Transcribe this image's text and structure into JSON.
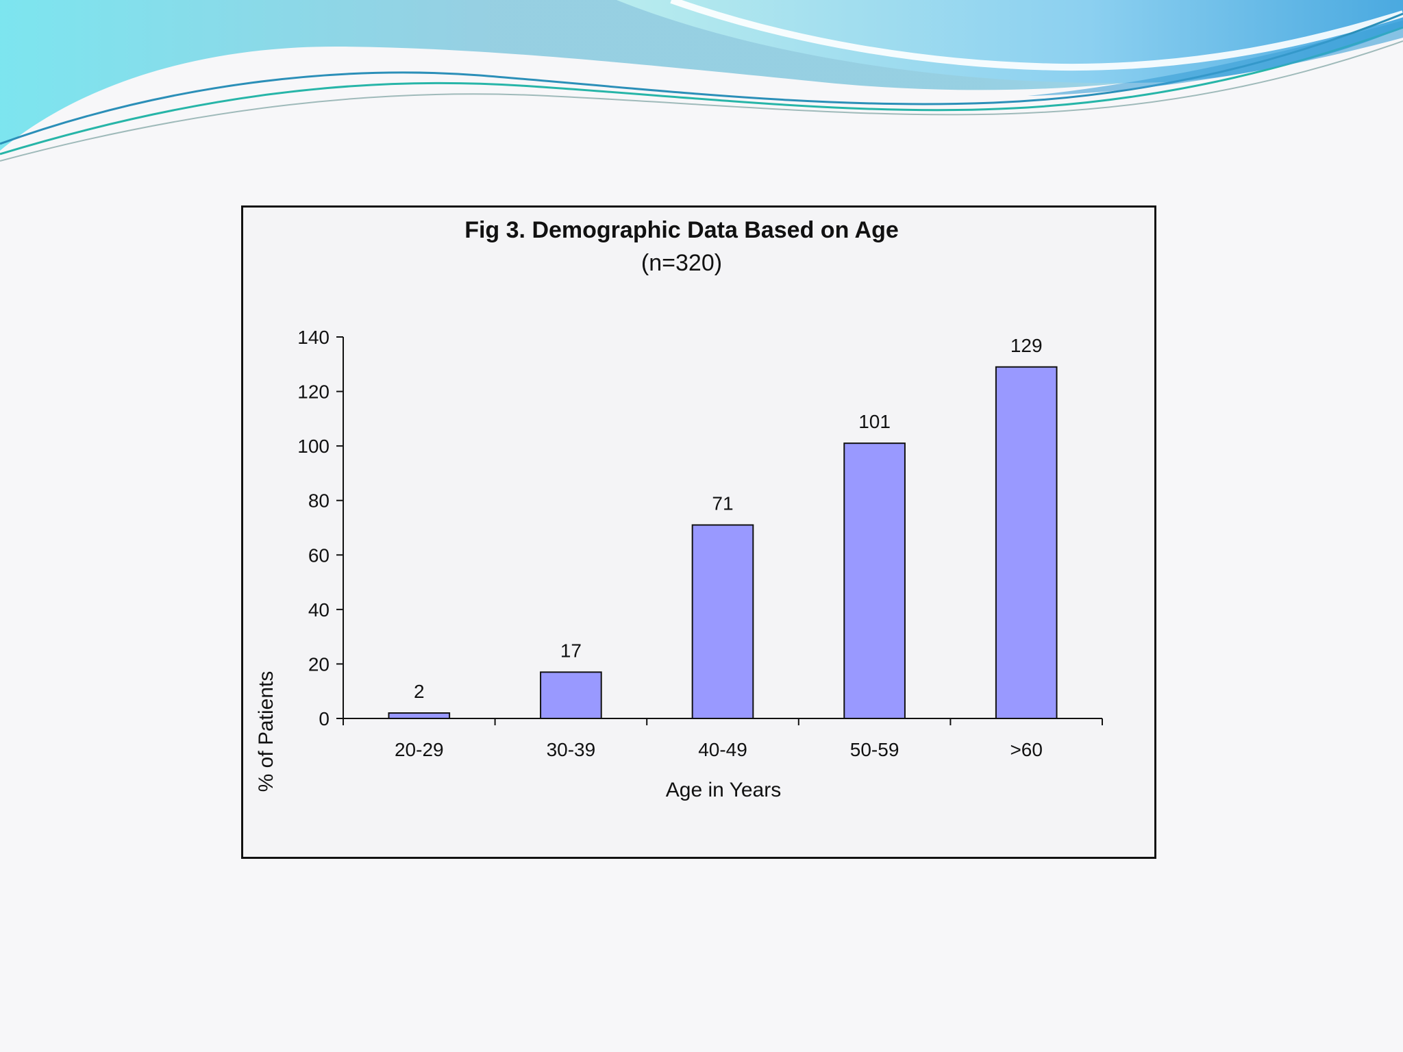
{
  "theme": {
    "background": "#f7f7f9",
    "wave_light": "#8ccbe0",
    "wave_cyan": "#73e0ea",
    "wave_blue": "#3a9fd6",
    "bar_fill": "#9999ff",
    "bar_stroke": "#111111"
  },
  "chart_data": {
    "type": "bar",
    "title": "Fig 3. Demographic Data Based on Age",
    "subtitle": "(n=320)",
    "xlabel": "Age in Years",
    "ylabel": "% of Patients",
    "categories": [
      "20-29",
      "30-39",
      "40-49",
      "50-59",
      ">60"
    ],
    "values": [
      2,
      17,
      71,
      101,
      129
    ],
    "data_labels": [
      "2",
      "17",
      "71",
      "101",
      "129"
    ],
    "ylim": [
      0,
      140
    ],
    "yticks": [
      0,
      20,
      40,
      60,
      80,
      100,
      120,
      140
    ],
    "grid": false,
    "legend": "none"
  }
}
